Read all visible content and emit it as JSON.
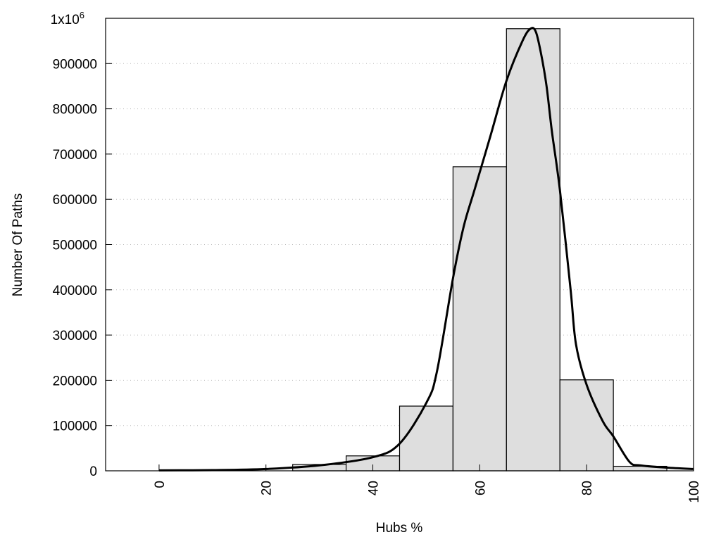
{
  "chart_data": {
    "type": "bar",
    "title": "",
    "xlabel": "Hubs %",
    "ylabel": "Number Of Paths",
    "xlim": [
      -10,
      100
    ],
    "ylim": [
      0,
      1000000
    ],
    "xticks": [
      "0",
      "20",
      "40",
      "60",
      "80",
      "100"
    ],
    "xtick_values": [
      0,
      20,
      40,
      60,
      80,
      100
    ],
    "yticks": [
      "0",
      "100000",
      "200000",
      "300000",
      "400000",
      "500000",
      "600000",
      "700000",
      "800000",
      "900000"
    ],
    "ytick_values": [
      0,
      100000,
      200000,
      300000,
      400000,
      500000,
      600000,
      700000,
      800000,
      900000
    ],
    "ytop_label": {
      "base": "1x10",
      "exp": "6"
    },
    "grid": "y dotted",
    "bins": [
      [
        25,
        35
      ],
      [
        35,
        45
      ],
      [
        45,
        55
      ],
      [
        55,
        65
      ],
      [
        65,
        75
      ],
      [
        75,
        85
      ],
      [
        85,
        95
      ]
    ],
    "values": [
      14000,
      33000,
      143000,
      672000,
      977000,
      201000,
      10000
    ],
    "bar_color": "#dedede",
    "curve": {
      "x": [
        0,
        10,
        20,
        30,
        40,
        45,
        50,
        52,
        55,
        57,
        59,
        62,
        65,
        68,
        69.5,
        70.5,
        71.5,
        72.5,
        73.5,
        75,
        77,
        78,
        80,
        83,
        85,
        88,
        90,
        95,
        100
      ],
      "y": [
        1000,
        1500,
        4000,
        12000,
        30000,
        60000,
        150000,
        220000,
        426000,
        540000,
        620000,
        740000,
        862000,
        950000,
        977000,
        970000,
        920000,
        850000,
        750000,
        620000,
        400000,
        280000,
        190000,
        110000,
        76000,
        20000,
        12000,
        7000,
        4000
      ]
    }
  }
}
